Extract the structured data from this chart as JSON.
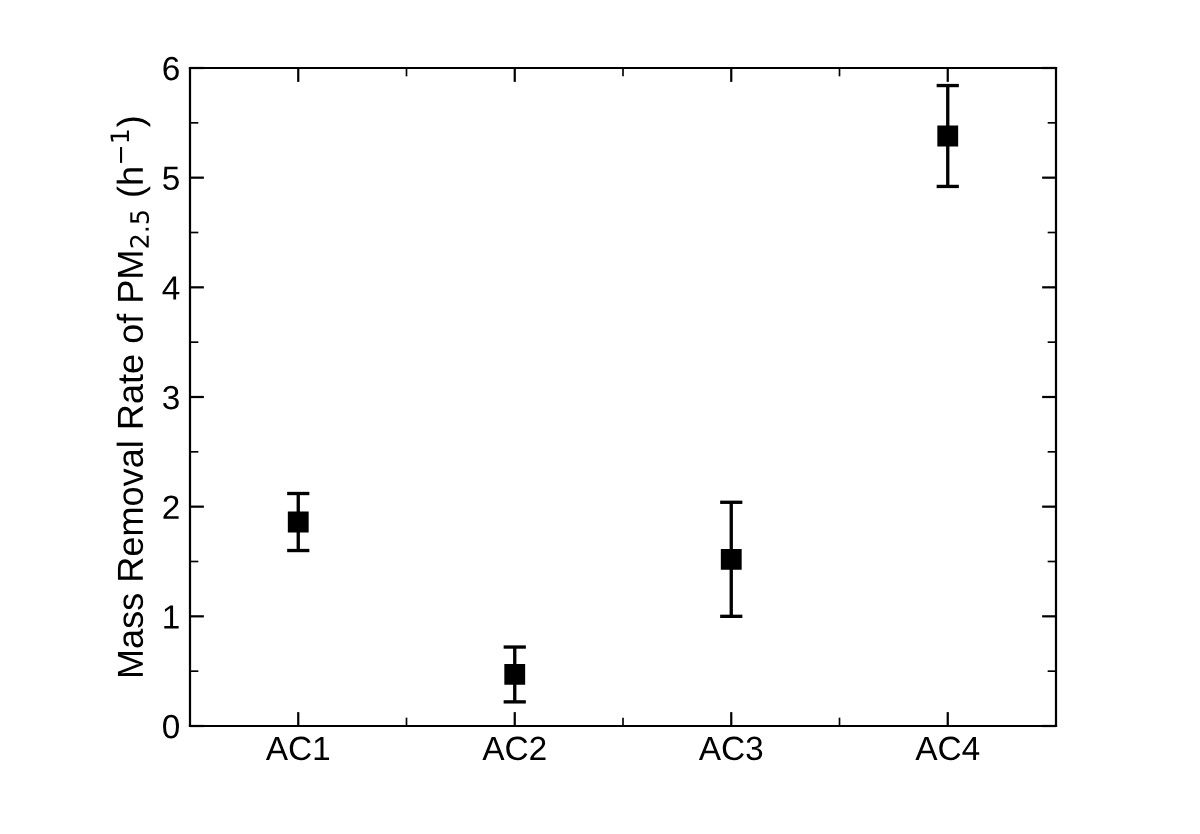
{
  "chart_data": {
    "type": "scatter",
    "ylabel": "Mass Removal Rate of PM$_{2.5}$ (h$^{−1}$)",
    "categories": [
      "AC1",
      "AC2",
      "AC3",
      "AC4"
    ],
    "series": [
      {
        "color": "#000000",
        "values": [
          1.86,
          0.47,
          1.52,
          5.38
        ],
        "errors": [
          0.26,
          0.25,
          0.52,
          0.46
        ]
      }
    ],
    "ylim": [
      0,
      6
    ],
    "yticks": [
      0,
      1,
      2,
      3,
      4,
      5,
      6
    ],
    "marker": "square",
    "grid": false,
    "legend": false
  }
}
